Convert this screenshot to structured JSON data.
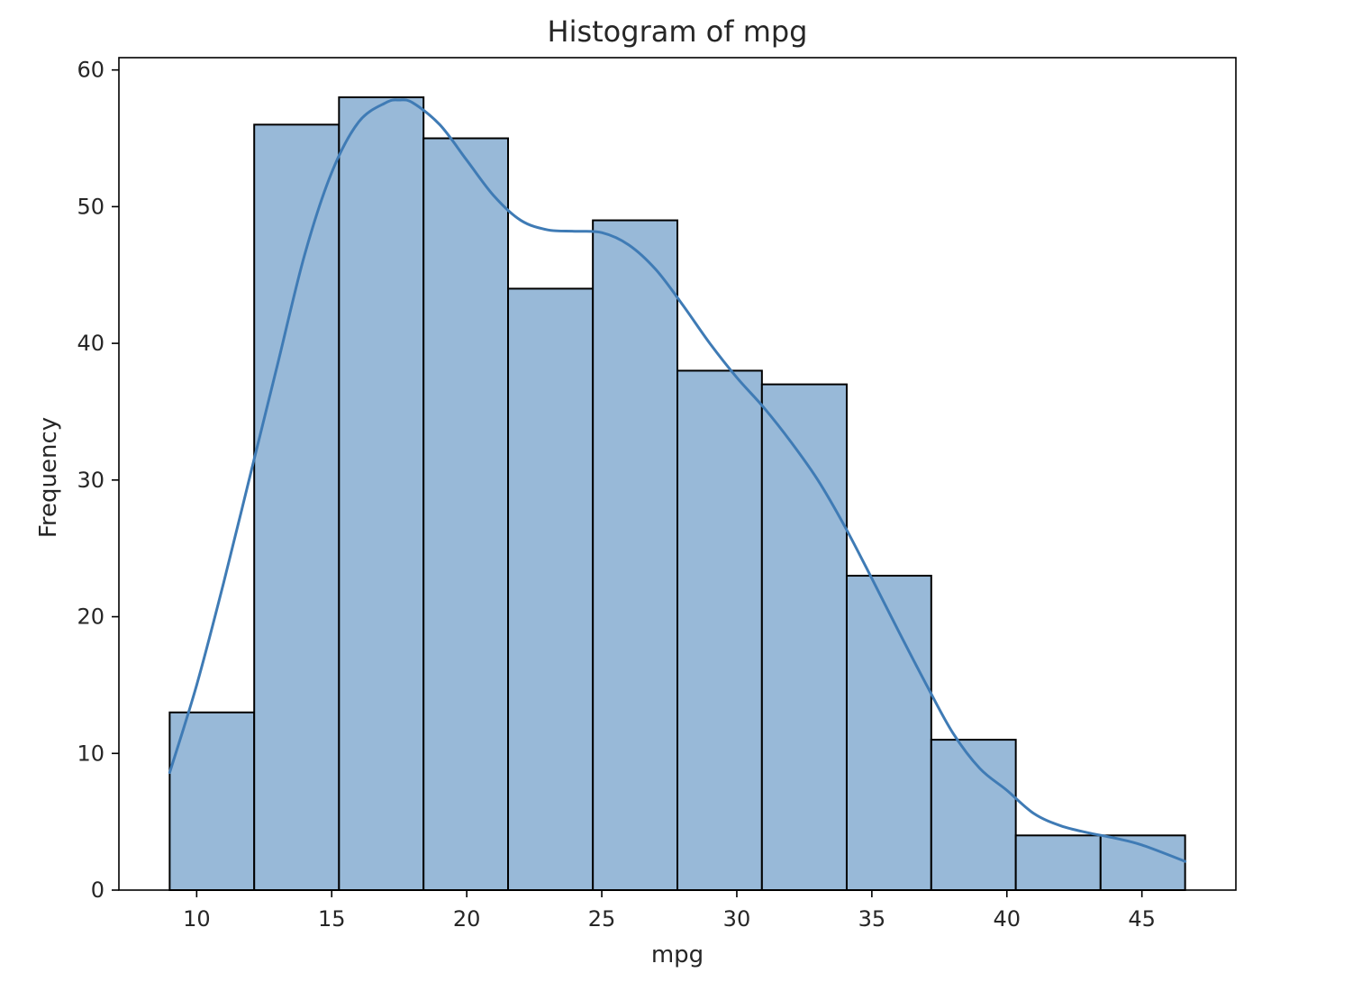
{
  "chart_data": {
    "type": "histogram",
    "title": "Histogram of mpg",
    "xlabel": "mpg",
    "ylabel": "Frequency",
    "xlim": [
      7.12,
      48.48
    ],
    "ylim": [
      0,
      60.9
    ],
    "xticks": [
      10,
      15,
      20,
      25,
      30,
      35,
      40,
      45
    ],
    "yticks": [
      0,
      10,
      20,
      30,
      40,
      50,
      60
    ],
    "bins": [
      {
        "x0": 9.0,
        "x1": 12.13,
        "count": 13
      },
      {
        "x0": 12.13,
        "x1": 15.27,
        "count": 56
      },
      {
        "x0": 15.27,
        "x1": 18.4,
        "count": 58
      },
      {
        "x0": 18.4,
        "x1": 21.53,
        "count": 55
      },
      {
        "x0": 21.53,
        "x1": 24.67,
        "count": 44
      },
      {
        "x0": 24.67,
        "x1": 27.8,
        "count": 49
      },
      {
        "x0": 27.8,
        "x1": 30.93,
        "count": 38
      },
      {
        "x0": 30.93,
        "x1": 34.07,
        "count": 37
      },
      {
        "x0": 34.07,
        "x1": 37.2,
        "count": 23
      },
      {
        "x0": 37.2,
        "x1": 40.33,
        "count": 11
      },
      {
        "x0": 40.33,
        "x1": 43.47,
        "count": 4
      },
      {
        "x0": 43.47,
        "x1": 46.6,
        "count": 4
      }
    ],
    "kde": {
      "x": [
        9.0,
        10.0,
        11.0,
        12.0,
        13.0,
        14.0,
        15.0,
        16.0,
        17.0,
        17.5,
        18.0,
        19.0,
        20.0,
        21.0,
        22.0,
        23.0,
        24.0,
        25.0,
        26.0,
        27.0,
        28.0,
        29.0,
        30.0,
        31.0,
        32.0,
        33.0,
        34.0,
        35.0,
        36.0,
        37.0,
        38.0,
        39.0,
        40.0,
        41.0,
        42.0,
        43.0,
        44.0,
        45.0,
        46.6
      ],
      "y": [
        8.6,
        15.0,
        22.5,
        30.5,
        38.5,
        46.5,
        52.5,
        56.2,
        57.6,
        57.8,
        57.6,
        56.0,
        53.4,
        50.8,
        49.0,
        48.3,
        48.2,
        48.1,
        47.2,
        45.4,
        42.8,
        40.0,
        37.5,
        35.3,
        32.8,
        30.0,
        26.6,
        22.8,
        18.9,
        15.1,
        11.5,
        8.9,
        7.3,
        5.6,
        4.7,
        4.2,
        3.8,
        3.3,
        2.1
      ]
    },
    "colors": {
      "bar_fill": "#98b9d8",
      "bar_edge": "#000000",
      "kde_line": "#3f7bb5"
    }
  }
}
